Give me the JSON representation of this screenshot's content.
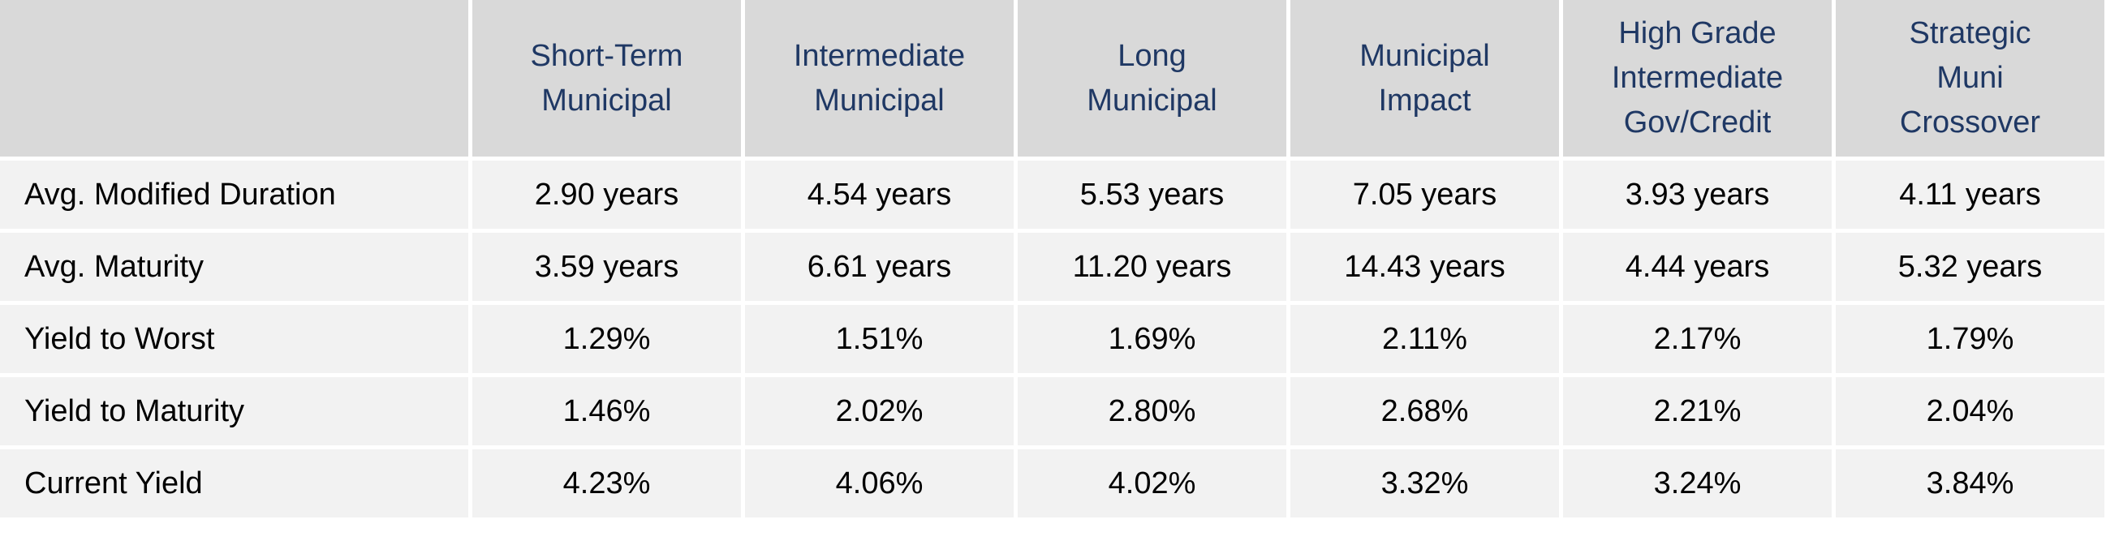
{
  "chart_data": {
    "type": "table",
    "columns": [
      {
        "lines": [
          "Short-Term",
          "Municipal"
        ]
      },
      {
        "lines": [
          "Intermediate",
          "Municipal"
        ]
      },
      {
        "lines": [
          "Long",
          "Municipal"
        ]
      },
      {
        "lines": [
          "Municipal",
          "Impact"
        ]
      },
      {
        "lines": [
          "High Grade",
          "Intermediate",
          "Gov/Credit"
        ]
      },
      {
        "lines": [
          "Strategic",
          "Muni",
          "Crossover"
        ]
      }
    ],
    "rows": [
      {
        "label": "Avg. Modified Duration",
        "values": [
          "2.90 years",
          "4.54 years",
          "5.53 years",
          "7.05 years",
          "3.93 years",
          "4.11 years"
        ]
      },
      {
        "label": "Avg. Maturity",
        "values": [
          "3.59 years",
          "6.61 years",
          "11.20 years",
          "14.43 years",
          "4.44 years",
          "5.32 years"
        ]
      },
      {
        "label": "Yield to Worst",
        "values": [
          "1.29%",
          "1.51%",
          "1.69%",
          "2.11%",
          "2.17%",
          "1.79%"
        ]
      },
      {
        "label": "Yield to Maturity",
        "values": [
          "1.46%",
          "2.02%",
          "2.80%",
          "2.68%",
          "2.21%",
          "2.04%"
        ]
      },
      {
        "label": "Current Yield",
        "values": [
          "4.23%",
          "4.06%",
          "4.02%",
          "3.32%",
          "3.24%",
          "3.84%"
        ]
      }
    ]
  },
  "colors": {
    "header_bg": "#d9d9d9",
    "header_text": "#1f3864",
    "body_bg": "#f2f2f2",
    "body_text": "#000000"
  }
}
